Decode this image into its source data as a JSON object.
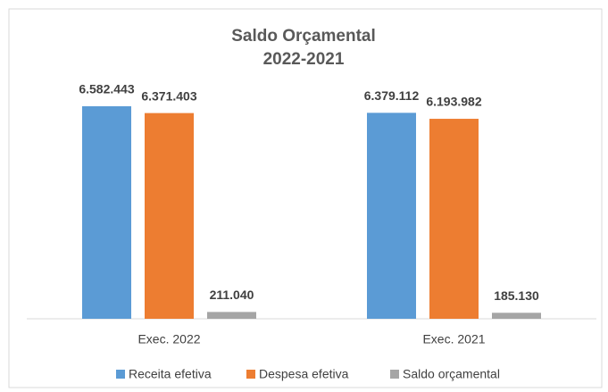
{
  "chart_data": {
    "type": "bar",
    "title": "Saldo Orçamental",
    "subtitle": "2022-2021",
    "categories": [
      "Exec. 2022",
      "Exec. 2021"
    ],
    "series": [
      {
        "name": "Receita efetiva",
        "color": "#5b9bd5",
        "values": [
          6582443,
          6379112
        ],
        "value_labels": [
          "6.582.443",
          "6.379.112"
        ]
      },
      {
        "name": "Despesa efetiva",
        "color": "#ed7d31",
        "values": [
          6371403,
          6193982
        ],
        "value_labels": [
          "6.371.403",
          "6.193.982"
        ]
      },
      {
        "name": "Saldo orçamental",
        "color": "#a5a5a5",
        "values": [
          211040,
          185130
        ],
        "value_labels": [
          "211.040",
          "185.130"
        ]
      }
    ],
    "legend": "bottom"
  }
}
